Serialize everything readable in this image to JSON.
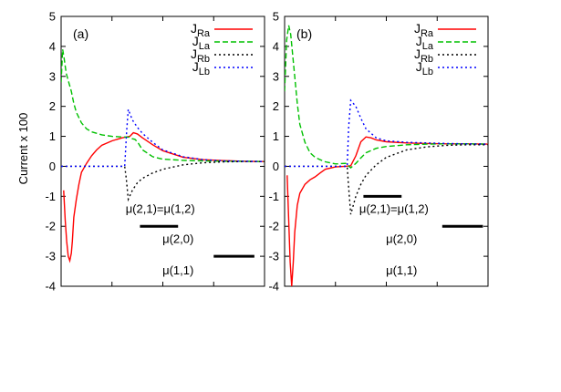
{
  "y_axis_label": "Current x 100",
  "chart_data": [
    {
      "type": "line",
      "panel_label": "(a)",
      "ylabel": "Current x 100",
      "xlabel": "",
      "ylim": [
        -4,
        5
      ],
      "xlim": [
        0,
        40
      ],
      "yticks": [
        -4,
        -3,
        -2,
        -1,
        0,
        1,
        2,
        3,
        4,
        5
      ],
      "ytick_labels": [
        "-4",
        "-3",
        "-2",
        "-1",
        "0",
        "1",
        "2",
        "3",
        "4",
        "5"
      ],
      "grid": false,
      "legend_position": "top-right",
      "series": [
        {
          "name": "J_Ra",
          "name_main": "J",
          "name_sub": "Ra",
          "color": "#ff0000",
          "dash": "solid",
          "x": [
            0.5,
            0.8,
            1.1,
            1.4,
            1.7,
            2.0,
            2.2,
            2.5,
            3.0,
            3.5,
            4.0,
            5.0,
            6.0,
            7.0,
            8.0,
            10.0,
            12.0,
            13.5,
            14.2,
            15.0,
            16.0,
            18.0,
            20.0,
            24.0,
            28.0,
            32.0,
            36.0,
            40.0
          ],
          "y": [
            -0.8,
            -1.8,
            -2.5,
            -3.0,
            -3.15,
            -2.9,
            -2.5,
            -1.7,
            -1.1,
            -0.6,
            -0.2,
            0.1,
            0.35,
            0.55,
            0.7,
            0.85,
            0.95,
            1.0,
            1.12,
            1.08,
            0.95,
            0.72,
            0.52,
            0.3,
            0.22,
            0.19,
            0.17,
            0.16
          ]
        },
        {
          "name": "J_La",
          "name_main": "J",
          "name_sub": "La",
          "color": "#00c000",
          "dash": "dashed",
          "x": [
            0.0,
            0.3,
            0.6,
            1.0,
            1.5,
            2.0,
            2.5,
            3.0,
            4.0,
            5.0,
            6.0,
            8.0,
            10.0,
            12.0,
            13.5,
            14.0,
            14.5,
            15.0,
            16.0,
            18.0,
            20.0,
            24.0,
            28.0,
            32.0,
            36.0,
            40.0
          ],
          "y": [
            2.8,
            3.9,
            3.6,
            3.1,
            2.8,
            2.5,
            2.1,
            1.8,
            1.45,
            1.25,
            1.15,
            1.05,
            1.0,
            0.98,
            0.97,
            0.92,
            0.9,
            0.82,
            0.55,
            0.32,
            0.24,
            0.2,
            0.18,
            0.17,
            0.17,
            0.16
          ]
        },
        {
          "name": "J_Rb",
          "name_main": "J",
          "name_sub": "Rb",
          "color": "#000000",
          "dash": "dotted",
          "x": [
            0.0,
            4.0,
            8.0,
            11.5,
            12.5,
            12.8,
            13.2,
            14.0,
            15.0,
            16.0,
            18.0,
            20.0,
            24.0,
            28.0,
            32.0,
            36.0,
            40.0
          ],
          "y": [
            0.0,
            0.0,
            0.0,
            0.0,
            0.0,
            -0.4,
            -1.1,
            -0.8,
            -0.55,
            -0.4,
            -0.22,
            -0.1,
            0.05,
            0.12,
            0.15,
            0.16,
            0.16
          ]
        },
        {
          "name": "J_Lb",
          "name_main": "J",
          "name_sub": "Lb",
          "color": "#0000ff",
          "dash": "dotted",
          "x": [
            0.0,
            4.0,
            8.0,
            11.5,
            12.5,
            12.9,
            13.2,
            14.0,
            15.0,
            16.0,
            18.0,
            20.0,
            24.0,
            28.0,
            32.0,
            36.0,
            40.0
          ],
          "y": [
            0.0,
            0.0,
            0.0,
            0.0,
            0.0,
            1.2,
            1.9,
            1.55,
            1.3,
            1.1,
            0.8,
            0.55,
            0.32,
            0.22,
            0.18,
            0.17,
            0.16
          ]
        }
      ],
      "level_bars": [
        {
          "x0": 15.5,
          "x1": 23.0,
          "y": -2.0
        },
        {
          "x0": 30.0,
          "x1": 38.0,
          "y": -3.0
        }
      ],
      "annotations": [
        {
          "text": "μ(2,1)=μ(1,2)",
          "x": 19.5,
          "y": -1.55
        },
        {
          "text": "μ(2,0)",
          "x": 23.0,
          "y": -2.55
        },
        {
          "text": "μ(1,1)",
          "x": 23.0,
          "y": -3.6
        }
      ]
    },
    {
      "type": "line",
      "panel_label": "(b)",
      "ylabel": "",
      "xlabel": "",
      "ylim": [
        -4,
        5
      ],
      "xlim": [
        0,
        40
      ],
      "yticks": [
        -4,
        -3,
        -2,
        -1,
        0,
        1,
        2,
        3,
        4,
        5
      ],
      "ytick_labels": [
        "-4",
        "-3",
        "-2",
        "-1",
        "0",
        "1",
        "2",
        "3",
        "4",
        "5"
      ],
      "grid": false,
      "legend_position": "top-right",
      "series": [
        {
          "name": "J_Ra",
          "name_main": "J",
          "name_sub": "Ra",
          "color": "#ff0000",
          "dash": "solid",
          "x": [
            0.5,
            0.8,
            1.1,
            1.4,
            1.7,
            2.0,
            2.5,
            3.0,
            4.0,
            5.0,
            6.0,
            7.0,
            8.0,
            10.0,
            12.0,
            13.0,
            14.0,
            15.0,
            16.0,
            17.0,
            18.0,
            20.0,
            24.0,
            28.0,
            32.0,
            36.0,
            40.0
          ],
          "y": [
            -0.3,
            -1.8,
            -3.2,
            -4.0,
            -3.2,
            -2.2,
            -1.3,
            -0.9,
            -0.6,
            -0.45,
            -0.35,
            -0.22,
            -0.1,
            -0.02,
            0.0,
            0.02,
            0.35,
            0.82,
            0.98,
            0.95,
            0.88,
            0.82,
            0.78,
            0.76,
            0.75,
            0.75,
            0.74
          ]
        },
        {
          "name": "J_La",
          "name_main": "J",
          "name_sub": "La",
          "color": "#00c000",
          "dash": "dashed",
          "x": [
            0.0,
            0.4,
            0.8,
            1.2,
            1.6,
            2.0,
            2.5,
            3.0,
            4.0,
            5.0,
            6.0,
            7.0,
            8.0,
            10.0,
            12.0,
            13.0,
            14.0,
            15.0,
            16.0,
            18.0,
            20.0,
            24.0,
            28.0,
            32.0,
            36.0,
            40.0
          ],
          "y": [
            2.5,
            4.2,
            4.7,
            4.4,
            3.7,
            3.0,
            2.1,
            1.4,
            0.8,
            0.45,
            0.3,
            0.22,
            0.15,
            0.08,
            0.1,
            -0.05,
            0.1,
            0.28,
            0.45,
            0.6,
            0.66,
            0.72,
            0.74,
            0.75,
            0.75,
            0.74
          ]
        },
        {
          "name": "J_Rb",
          "name_main": "J",
          "name_sub": "Rb",
          "color": "#000000",
          "dash": "dotted",
          "x": [
            0.0,
            4.0,
            8.0,
            11.5,
            12.3,
            12.6,
            13.0,
            14.0,
            15.0,
            16.0,
            18.0,
            20.0,
            24.0,
            28.0,
            32.0,
            36.0,
            40.0
          ],
          "y": [
            0.0,
            0.0,
            0.0,
            0.0,
            0.0,
            -0.7,
            -1.6,
            -1.0,
            -0.6,
            -0.3,
            0.05,
            0.3,
            0.55,
            0.65,
            0.7,
            0.72,
            0.72
          ]
        },
        {
          "name": "J_Lb",
          "name_main": "J",
          "name_sub": "Lb",
          "color": "#0000ff",
          "dash": "dotted",
          "x": [
            0.0,
            4.0,
            8.0,
            11.5,
            12.3,
            12.6,
            13.0,
            14.0,
            15.0,
            16.0,
            18.0,
            20.0,
            24.0,
            28.0,
            32.0,
            36.0,
            40.0
          ],
          "y": [
            0.0,
            0.0,
            0.0,
            0.0,
            0.0,
            1.3,
            2.2,
            2.0,
            1.6,
            1.25,
            0.95,
            0.85,
            0.8,
            0.78,
            0.76,
            0.75,
            0.74
          ]
        }
      ],
      "level_bars": [
        {
          "x0": 15.5,
          "x1": 23.0,
          "y": -1.0
        },
        {
          "x0": 31.0,
          "x1": 39.0,
          "y": -2.0
        }
      ],
      "annotations": [
        {
          "text": "μ(2,1)=μ(1,2)",
          "x": 21.5,
          "y": -1.55
        },
        {
          "text": "μ(2,0)",
          "x": 23.0,
          "y": -2.55
        },
        {
          "text": "μ(1,1)",
          "x": 23.0,
          "y": -3.6
        }
      ]
    }
  ]
}
